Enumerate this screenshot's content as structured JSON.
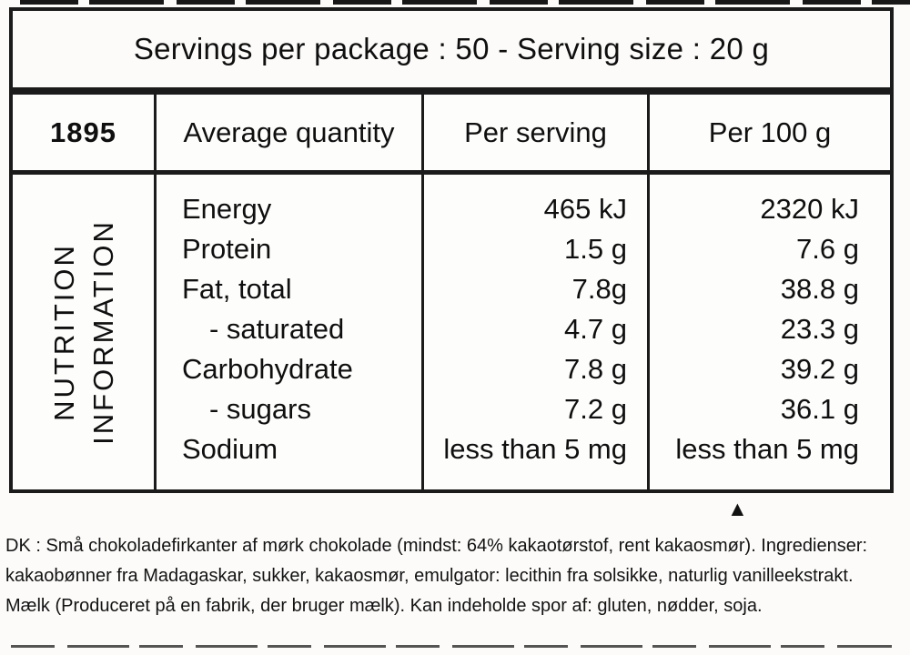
{
  "serving_banner": {
    "text": "Servings per package : 50 - Serving size : 20 g"
  },
  "nutrition_table": {
    "code": "1895",
    "header": {
      "quantity": "Average quantity",
      "per_serving": "Per serving",
      "per_100g": "Per 100 g"
    },
    "side_label": {
      "line1": "NUTRITION",
      "line2": "INFORMATION"
    },
    "rows": [
      {
        "label": "Energy",
        "indent": false,
        "per_serving": "465 kJ",
        "per_100g": "2320 kJ"
      },
      {
        "label": "Protein",
        "indent": false,
        "per_serving": "1.5 g",
        "per_100g": "7.6 g"
      },
      {
        "label": "Fat, total",
        "indent": false,
        "per_serving": "7.8g",
        "per_100g": "38.8 g"
      },
      {
        "label": "- saturated",
        "indent": true,
        "per_serving": "4.7 g",
        "per_100g": "23.3 g"
      },
      {
        "label": "Carbohydrate",
        "indent": false,
        "per_serving": "7.8 g",
        "per_100g": "39.2 g"
      },
      {
        "label": "- sugars",
        "indent": true,
        "per_serving": "7.2 g",
        "per_100g": "36.1 g"
      },
      {
        "label": "Sodium",
        "indent": false,
        "per_serving": "less than 5 mg",
        "per_100g": "less than 5 mg"
      }
    ]
  },
  "marker": {
    "glyph": "▲"
  },
  "ingredients_dk": {
    "lines": [
      "DK : Små chokoladefirkanter af mørk chokolade (mindst: 64% kakaotørstof, rent kakaosmør). Ingredienser:",
      "kakaobønner fra Madagaskar, sukker, kakaosmør, emulgator: lecithin fra solsikke, naturlig vanilleekstrakt.",
      "Mælk (Produceret på en fabrik, der bruger mælk). Kan indeholde spor af: gluten, nødder, soja."
    ]
  },
  "colors": {
    "ink": "#1b1b1b",
    "paper": "#fcfbfa"
  }
}
